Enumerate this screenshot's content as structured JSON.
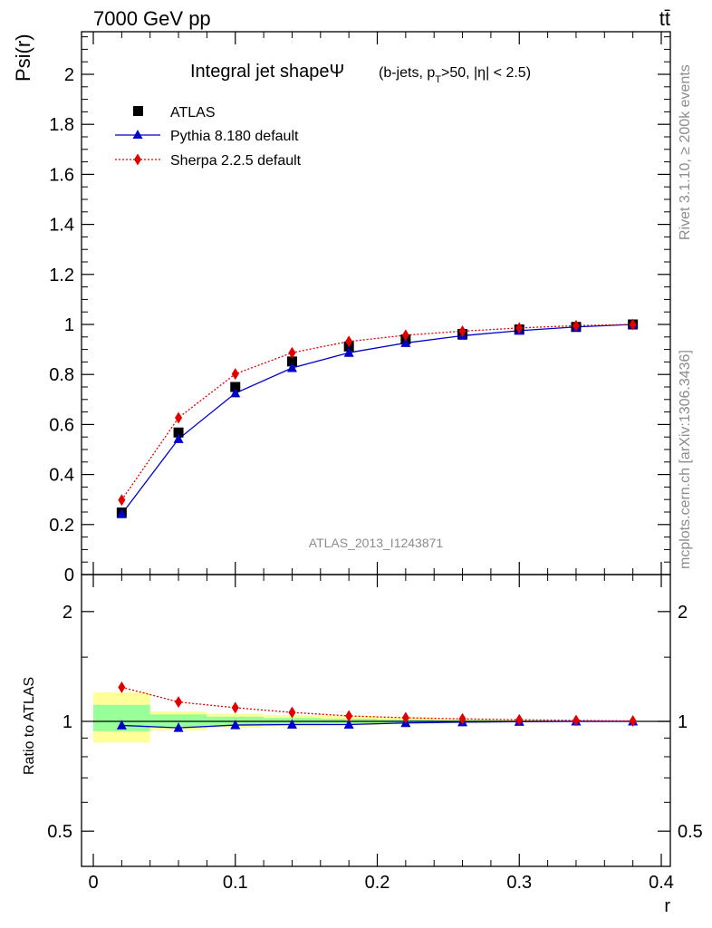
{
  "header": {
    "energy_label": "7000 GeV pp",
    "process_label": "tt̄"
  },
  "side_labels": {
    "rivet": "Rivet 3.1.10, ≥ 200k events",
    "mcplots": "mcplots.cern.ch [arXiv:1306.3436]"
  },
  "chart_data": [
    {
      "type": "line",
      "title": "Integral jet shapeΨ",
      "title_detail": "(b-jets, p_T>50, |η| < 2.5)",
      "title_parts": {
        "pre": "(b-jets, p",
        "sub": "T",
        "post": ">50, |η| < 2.5)"
      },
      "ylabel": "Psi(r)",
      "xlabel": "r",
      "xlim": [
        -0.0075,
        0.4
      ],
      "ylim": [
        0,
        2.18
      ],
      "yticks": [
        0.2,
        0.4,
        0.6,
        0.8,
        1,
        1.2,
        1.4,
        1.6,
        1.8,
        2
      ],
      "ytick_labels": [
        "0.2",
        "0.4",
        "0.6",
        "0.8",
        "1",
        "1.2",
        "1.4",
        "1.6",
        "1.8",
        "2"
      ],
      "ytick_zero_label": "0",
      "grid": false,
      "legend_position": "top-left",
      "watermark": "ATLAS_2013_I1243871",
      "x": [
        0.02,
        0.06,
        0.1,
        0.14,
        0.18,
        0.22,
        0.26,
        0.3,
        0.34,
        0.38
      ],
      "bin_edges": [
        0.0,
        0.04,
        0.08,
        0.12,
        0.16,
        0.2,
        0.24,
        0.28,
        0.32,
        0.36,
        0.4
      ],
      "series": [
        {
          "name": "ATLAS",
          "marker": "square",
          "color": "#000000",
          "values": [
            0.248,
            0.568,
            0.75,
            0.852,
            0.912,
            0.94,
            0.962,
            0.98,
            0.99,
            1.0
          ]
        },
        {
          "name": "Pythia 8.180 default",
          "marker": "triangle",
          "color": "#0000cc",
          "values": [
            0.242,
            0.542,
            0.725,
            0.826,
            0.887,
            0.926,
            0.955,
            0.975,
            0.99,
            1.0
          ]
        },
        {
          "name": "Sherpa 2.2.5 default",
          "marker": "diamond",
          "color": "#e00000",
          "values": [
            0.298,
            0.627,
            0.802,
            0.887,
            0.932,
            0.957,
            0.973,
            0.986,
            0.995,
            1.0
          ]
        }
      ]
    },
    {
      "type": "line",
      "ylabel": "Ratio to ATLAS",
      "xlabel": "r",
      "yscale": "log",
      "ylim": [
        0.41,
        2.44
      ],
      "yticks": [
        0.5,
        1,
        2
      ],
      "ytick_labels": [
        "0.5",
        "1",
        "2"
      ],
      "xticks": [
        0,
        0.1,
        0.2,
        0.3,
        0.4
      ],
      "xtick_labels": [
        "0",
        "0.1",
        "0.2",
        "0.3",
        "0.4"
      ],
      "reference_line": 1,
      "x": [
        0.02,
        0.06,
        0.1,
        0.14,
        0.18,
        0.22,
        0.26,
        0.3,
        0.34,
        0.38
      ],
      "bin_edges": [
        0.0,
        0.04,
        0.08,
        0.12,
        0.16,
        0.2,
        0.24,
        0.28,
        0.32,
        0.36,
        0.4
      ],
      "bands": {
        "stat": {
          "color": "#99ff99",
          "low": [
            0.94,
            0.965,
            0.975,
            0.98,
            0.985,
            0.99,
            0.993,
            0.996,
            0.998,
            1.0
          ],
          "high": [
            1.11,
            1.045,
            1.03,
            1.022,
            1.017,
            1.012,
            1.008,
            1.005,
            1.003,
            1.0
          ]
        },
        "total": {
          "color": "#ffff99",
          "low": [
            0.875,
            0.945,
            0.96,
            0.968,
            0.975,
            0.982,
            0.988,
            0.993,
            0.997,
            1.0
          ],
          "high": [
            1.2,
            1.065,
            1.05,
            1.04,
            1.035,
            1.024,
            1.016,
            1.01,
            1.005,
            1.0
          ]
        }
      },
      "series": [
        {
          "name": "Pythia 8.180 default",
          "marker": "triangle",
          "color": "#0000cc",
          "values": [
            0.975,
            0.96,
            0.977,
            0.98,
            0.98,
            0.99,
            0.995,
            0.998,
            1.0,
            1.0
          ]
        },
        {
          "name": "Sherpa 2.2.5 default",
          "marker": "diamond",
          "color": "#e00000",
          "values": [
            1.24,
            1.13,
            1.09,
            1.058,
            1.035,
            1.023,
            1.016,
            1.01,
            1.006,
            1.003
          ]
        }
      ]
    }
  ]
}
